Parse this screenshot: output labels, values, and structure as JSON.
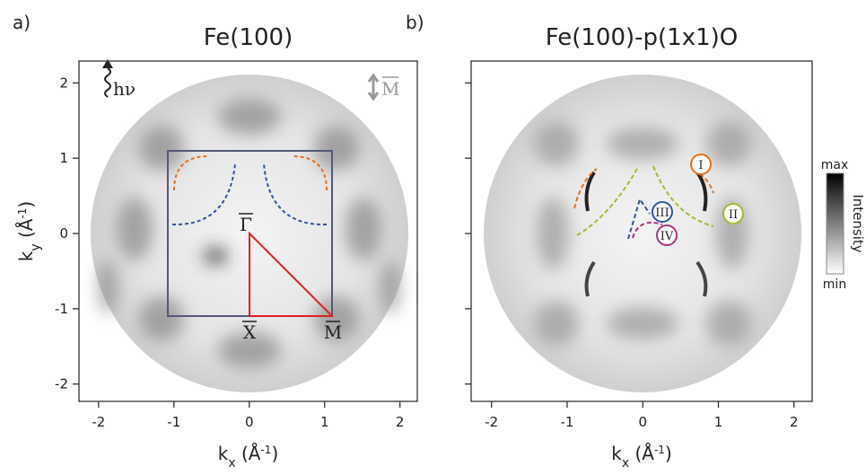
{
  "chart_data": [
    {
      "type": "heatmap",
      "panel_label": "a)",
      "title": "Fe(100)",
      "xlabel": [
        "k",
        "x",
        " (Å",
        "-1",
        ")"
      ],
      "ylabel": [
        "k",
        "y",
        " (Å",
        "-1",
        ")"
      ],
      "xlim": [
        -2.26,
        2.23
      ],
      "ylim": [
        -2.23,
        2.29
      ],
      "xticks": [
        -2,
        -1,
        0,
        1,
        2
      ],
      "yticks": [
        -2,
        -1,
        0,
        1,
        2
      ],
      "annotations": {
        "photon": "hν",
        "mirror": "M",
        "gamma": "Γ",
        "x_point": "X",
        "m_point": "M"
      }
    },
    {
      "type": "heatmap",
      "panel_label": "b)",
      "title": "Fe(100)-p(1x1)O",
      "xlabel": [
        "k",
        "x",
        " (Å",
        "-1",
        ")"
      ],
      "xlim": [
        -2.27,
        2.24
      ],
      "ylim": [
        -2.23,
        2.29
      ],
      "xticks": [
        -2,
        -1,
        0,
        1,
        2
      ],
      "features": [
        "I",
        "II",
        "III",
        "IV"
      ],
      "colorbar": {
        "max": "max",
        "min": "min",
        "label": "Intensity"
      }
    }
  ]
}
